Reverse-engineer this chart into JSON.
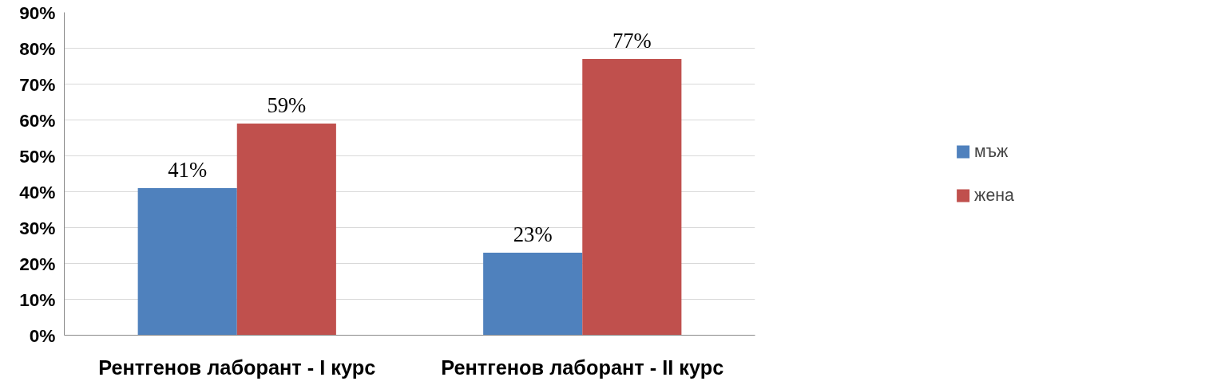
{
  "chart_data": {
    "type": "bar",
    "categories": [
      "Рентгенов лаборант - I курс",
      "Рентгенов лаборант - II курс"
    ],
    "series": [
      {
        "name": "мъж",
        "color": "#4f81bd",
        "values": [
          41,
          23
        ],
        "value_labels": [
          "41%",
          "23%"
        ]
      },
      {
        "name": "жена",
        "color": "#c0504d",
        "values": [
          59,
          77
        ],
        "value_labels": [
          "59%",
          "77%"
        ]
      }
    ],
    "ylim": [
      0,
      90
    ],
    "yticks": [
      {
        "value": 0,
        "label": "0%"
      },
      {
        "value": 10,
        "label": "10%"
      },
      {
        "value": 20,
        "label": "20%"
      },
      {
        "value": 30,
        "label": "30%"
      },
      {
        "value": 40,
        "label": "40%"
      },
      {
        "value": 50,
        "label": "50%"
      },
      {
        "value": 60,
        "label": "60%"
      },
      {
        "value": 70,
        "label": "70%"
      },
      {
        "value": 80,
        "label": "80%"
      },
      {
        "value": 90,
        "label": "90%"
      }
    ],
    "grid": "y",
    "legend": "right"
  }
}
